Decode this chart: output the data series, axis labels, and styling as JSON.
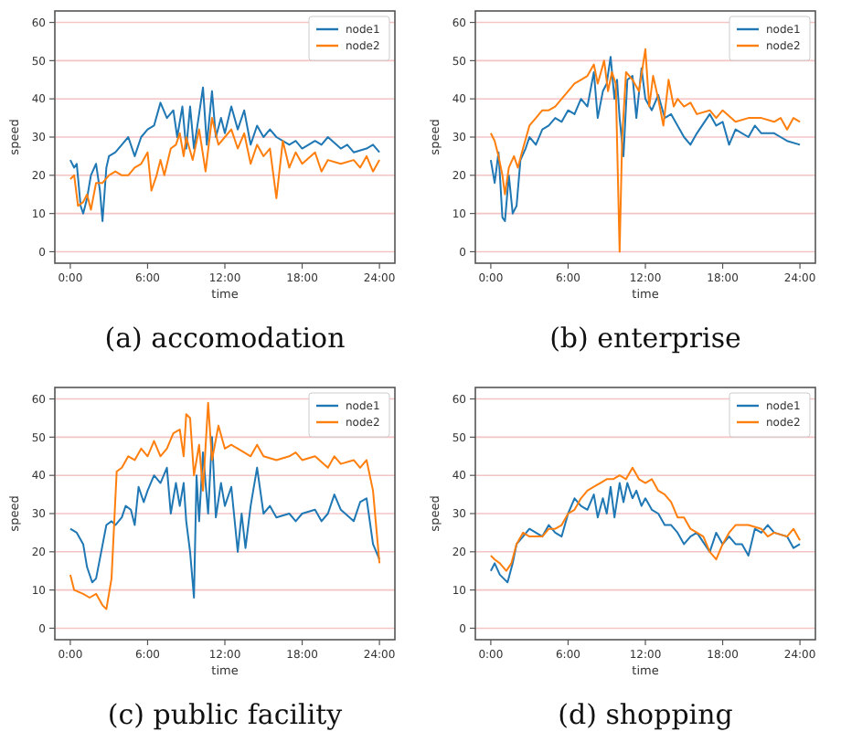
{
  "chart_data": [
    {
      "type": "line",
      "title": "(a) accomodation",
      "xlabel": "time",
      "ylabel": "speed",
      "xlim": [
        -1.2,
        25.2
      ],
      "ylim": [
        -3,
        63
      ],
      "xticks": [
        {
          "value": 0,
          "label": "0:00"
        },
        {
          "value": 6,
          "label": "6:00"
        },
        {
          "value": 12,
          "label": "12:00"
        },
        {
          "value": 18,
          "label": "18:00"
        },
        {
          "value": 24,
          "label": "24:00"
        }
      ],
      "yticks": [
        0,
        10,
        20,
        30,
        40,
        50,
        60
      ],
      "grid": "y",
      "legend": "top right",
      "series": [
        {
          "name": "node1",
          "color": "#1f77b4",
          "x": [
            0,
            0.3,
            0.5,
            0.8,
            1,
            1.3,
            1.6,
            2,
            2.3,
            2.5,
            2.8,
            3,
            3.5,
            4,
            4.5,
            5,
            5.5,
            6,
            6.5,
            7,
            7.5,
            8,
            8.3,
            8.7,
            9,
            9.3,
            9.6,
            10,
            10.3,
            10.6,
            11,
            11.3,
            11.7,
            12,
            12.5,
            13,
            13.5,
            14,
            14.5,
            15,
            15.5,
            16,
            17,
            17.5,
            18,
            19,
            19.5,
            20,
            21,
            21.5,
            22,
            23,
            23.5,
            24
          ],
          "values": [
            24,
            22,
            23,
            12,
            10,
            14,
            20,
            23,
            16,
            8,
            22,
            25,
            26,
            28,
            30,
            25,
            30,
            32,
            33,
            39,
            35,
            37,
            30,
            38,
            27,
            38,
            27,
            36,
            43,
            28,
            42,
            30,
            35,
            31,
            38,
            32,
            37,
            28,
            33,
            30,
            32,
            30,
            28,
            29,
            27,
            29,
            28,
            30,
            27,
            28,
            26,
            27,
            28,
            26
          ]
        },
        {
          "name": "node2",
          "color": "#ff7f0e",
          "x": [
            0,
            0.3,
            0.6,
            1,
            1.3,
            1.6,
            2,
            2.5,
            3,
            3.5,
            4,
            4.5,
            5,
            5.5,
            6,
            6.3,
            6.7,
            7,
            7.3,
            7.8,
            8.2,
            8.5,
            8.8,
            9,
            9.5,
            10,
            10.5,
            11,
            11.5,
            12,
            12.5,
            13,
            13.5,
            14,
            14.5,
            15,
            15.5,
            16,
            16.5,
            17,
            17.5,
            18,
            19,
            19.5,
            20,
            21,
            22,
            22.5,
            23,
            23.5,
            24
          ],
          "values": [
            19,
            20,
            12,
            13,
            15,
            11,
            18,
            18,
            20,
            21,
            20,
            20,
            22,
            23,
            26,
            16,
            20,
            24,
            20,
            27,
            28,
            31,
            25,
            30,
            24,
            32,
            21,
            35,
            28,
            30,
            32,
            27,
            31,
            23,
            28,
            25,
            27,
            14,
            29,
            22,
            26,
            23,
            26,
            21,
            24,
            23,
            24,
            22,
            25,
            21,
            24
          ]
        }
      ]
    },
    {
      "type": "line",
      "title": "(b) enterprise",
      "xlabel": "time",
      "ylabel": "speed",
      "xlim": [
        -1.2,
        25.2
      ],
      "ylim": [
        -3,
        63
      ],
      "xticks": [
        {
          "value": 0,
          "label": "0:00"
        },
        {
          "value": 6,
          "label": "6:00"
        },
        {
          "value": 12,
          "label": "12:00"
        },
        {
          "value": 18,
          "label": "18:00"
        },
        {
          "value": 24,
          "label": "24:00"
        }
      ],
      "yticks": [
        0,
        10,
        20,
        30,
        40,
        50,
        60
      ],
      "grid": "y",
      "legend": "top right",
      "series": [
        {
          "name": "node1",
          "color": "#1f77b4",
          "x": [
            0,
            0.3,
            0.6,
            0.9,
            1.1,
            1.4,
            1.7,
            2,
            2.3,
            2.7,
            3,
            3.5,
            4,
            4.5,
            5,
            5.5,
            6,
            6.5,
            7,
            7.5,
            8,
            8.3,
            8.7,
            9,
            9.3,
            9.6,
            9.8,
            10,
            10.3,
            10.6,
            11,
            11.3,
            11.7,
            12,
            12.5,
            13,
            13.5,
            14,
            14.5,
            15,
            15.5,
            16,
            17,
            17.5,
            18,
            18.5,
            19,
            20,
            20.5,
            21,
            22,
            22.5,
            23,
            24
          ],
          "values": [
            24,
            18,
            26,
            9,
            8,
            20,
            10,
            12,
            24,
            27,
            30,
            28,
            32,
            33,
            35,
            34,
            37,
            36,
            40,
            38,
            47,
            35,
            42,
            44,
            51,
            40,
            45,
            35,
            25,
            45,
            46,
            35,
            48,
            40,
            37,
            41,
            35,
            36,
            33,
            30,
            28,
            31,
            36,
            33,
            34,
            28,
            32,
            30,
            33,
            31,
            31,
            30,
            29,
            28
          ]
        },
        {
          "name": "node2",
          "color": "#ff7f0e",
          "x": [
            0,
            0.3,
            0.6,
            0.9,
            1.1,
            1.4,
            1.8,
            2.1,
            2.5,
            3,
            3.5,
            4,
            4.5,
            5,
            5.5,
            6,
            6.5,
            7,
            7.5,
            8,
            8.3,
            8.8,
            9.1,
            9.4,
            9.7,
            10,
            10.2,
            10.5,
            11,
            11.5,
            12,
            12.3,
            12.6,
            13,
            13.4,
            13.8,
            14.2,
            14.5,
            15,
            15.5,
            16,
            17,
            17.5,
            18,
            19,
            20,
            21,
            22,
            22.5,
            23,
            23.5,
            24
          ],
          "values": [
            31,
            29,
            25,
            20,
            15,
            22,
            25,
            22,
            27,
            33,
            35,
            37,
            37,
            38,
            40,
            42,
            44,
            45,
            46,
            49,
            44,
            50,
            42,
            47,
            44,
            0,
            30,
            47,
            45,
            42,
            53,
            38,
            46,
            40,
            33,
            45,
            38,
            40,
            38,
            39,
            36,
            37,
            35,
            37,
            34,
            35,
            35,
            34,
            35,
            32,
            35,
            34
          ]
        }
      ]
    },
    {
      "type": "line",
      "title": "(c) public facility",
      "xlabel": "time",
      "ylabel": "speed",
      "xlim": [
        -1.2,
        25.2
      ],
      "ylim": [
        -3,
        63
      ],
      "xticks": [
        {
          "value": 0,
          "label": "0:00"
        },
        {
          "value": 6,
          "label": "6:00"
        },
        {
          "value": 12,
          "label": "12:00"
        },
        {
          "value": 18,
          "label": "18:00"
        },
        {
          "value": 24,
          "label": "24:00"
        }
      ],
      "yticks": [
        0,
        10,
        20,
        30,
        40,
        50,
        60
      ],
      "grid": "y",
      "legend": "top right",
      "series": [
        {
          "name": "node1",
          "color": "#1f77b4",
          "x": [
            0,
            0.5,
            1,
            1.3,
            1.7,
            2,
            2.4,
            2.8,
            3.2,
            3.5,
            4,
            4.3,
            4.7,
            5,
            5.3,
            5.7,
            6,
            6.5,
            7,
            7.5,
            7.8,
            8.2,
            8.5,
            8.8,
            9,
            9.3,
            9.6,
            9.8,
            10,
            10.3,
            10.7,
            11,
            11.3,
            11.7,
            12,
            12.5,
            13,
            13.3,
            13.6,
            14,
            14.5,
            15,
            15.5,
            16,
            17,
            17.5,
            18,
            19,
            19.5,
            20,
            20.5,
            21,
            22,
            22.5,
            23,
            23.5,
            24
          ],
          "values": [
            26,
            25,
            22,
            16,
            12,
            13,
            20,
            27,
            28,
            27,
            29,
            32,
            31,
            27,
            37,
            33,
            36,
            40,
            38,
            42,
            30,
            38,
            32,
            38,
            28,
            20,
            8,
            40,
            28,
            46,
            30,
            50,
            29,
            38,
            32,
            37,
            20,
            30,
            21,
            32,
            42,
            30,
            32,
            29,
            30,
            28,
            30,
            31,
            28,
            30,
            35,
            31,
            28,
            33,
            34,
            22,
            18
          ]
        },
        {
          "name": "node2",
          "color": "#ff7f0e",
          "x": [
            0,
            0.3,
            1,
            1.5,
            2,
            2.5,
            2.8,
            3.2,
            3.6,
            4,
            4.5,
            5,
            5.5,
            6,
            6.5,
            7,
            7.5,
            8,
            8.5,
            8.8,
            9,
            9.3,
            9.6,
            10,
            10.3,
            10.7,
            11,
            11.5,
            12,
            12.5,
            13,
            14,
            14.5,
            15,
            16,
            17,
            17.5,
            18,
            19,
            20,
            20.5,
            21,
            22,
            22.5,
            23,
            23.5,
            24
          ],
          "values": [
            14,
            10,
            9,
            8,
            9,
            6,
            5,
            13,
            41,
            42,
            45,
            44,
            47,
            45,
            49,
            45,
            47,
            51,
            52,
            45,
            56,
            55,
            40,
            48,
            36,
            59,
            44,
            53,
            47,
            48,
            47,
            45,
            48,
            45,
            44,
            45,
            46,
            44,
            45,
            42,
            45,
            43,
            44,
            42,
            44,
            36,
            17
          ]
        }
      ]
    },
    {
      "type": "line",
      "title": "(d) shopping",
      "xlabel": "time",
      "ylabel": "speed",
      "xlim": [
        -1.2,
        25.2
      ],
      "ylim": [
        -3,
        63
      ],
      "xticks": [
        {
          "value": 0,
          "label": "0:00"
        },
        {
          "value": 6,
          "label": "6:00"
        },
        {
          "value": 12,
          "label": "12:00"
        },
        {
          "value": 18,
          "label": "18:00"
        },
        {
          "value": 24,
          "label": "24:00"
        }
      ],
      "yticks": [
        0,
        10,
        20,
        30,
        40,
        50,
        60
      ],
      "grid": "y",
      "legend": "top right",
      "series": [
        {
          "name": "node1",
          "color": "#1f77b4",
          "x": [
            0,
            0.3,
            0.7,
            1,
            1.3,
            1.7,
            2,
            2.5,
            3,
            3.5,
            4,
            4.5,
            5,
            5.5,
            6,
            6.5,
            7,
            7.5,
            8,
            8.3,
            8.7,
            9,
            9.3,
            9.6,
            10,
            10.3,
            10.6,
            11,
            11.3,
            11.7,
            12,
            12.5,
            13,
            13.5,
            14,
            14.5,
            15,
            15.5,
            16,
            17,
            17.5,
            18,
            18.5,
            19,
            19.5,
            20,
            20.5,
            21,
            21.5,
            22,
            23,
            23.5,
            24
          ],
          "values": [
            15,
            17,
            14,
            13,
            12,
            17,
            22,
            24,
            26,
            25,
            24,
            27,
            25,
            24,
            30,
            34,
            32,
            31,
            35,
            29,
            34,
            30,
            37,
            29,
            38,
            33,
            38,
            34,
            36,
            32,
            34,
            31,
            30,
            27,
            27,
            25,
            22,
            24,
            25,
            20,
            25,
            22,
            24,
            22,
            22,
            19,
            26,
            25,
            27,
            25,
            24,
            21,
            22
          ]
        },
        {
          "name": "node2",
          "color": "#ff7f0e",
          "x": [
            0,
            0.3,
            0.7,
            1.2,
            1.6,
            2,
            2.5,
            3,
            3.5,
            4,
            4.5,
            5,
            5.5,
            6,
            6.5,
            7,
            7.5,
            8,
            8.5,
            9,
            9.5,
            10,
            10.5,
            11,
            11.5,
            12,
            12.5,
            13,
            13.5,
            14,
            14.5,
            15,
            15.5,
            16,
            16.5,
            17,
            17.5,
            18,
            18.5,
            19,
            20,
            21,
            21.5,
            22,
            23,
            23.5,
            24
          ],
          "values": [
            19,
            18,
            17,
            15,
            17,
            22,
            25,
            24,
            24,
            24,
            26,
            26,
            27,
            30,
            31,
            34,
            36,
            37,
            38,
            39,
            39,
            40,
            39,
            42,
            39,
            38,
            39,
            36,
            35,
            33,
            29,
            29,
            26,
            25,
            24,
            20,
            18,
            22,
            25,
            27,
            27,
            26,
            24,
            25,
            24,
            26,
            23
          ]
        }
      ]
    }
  ]
}
